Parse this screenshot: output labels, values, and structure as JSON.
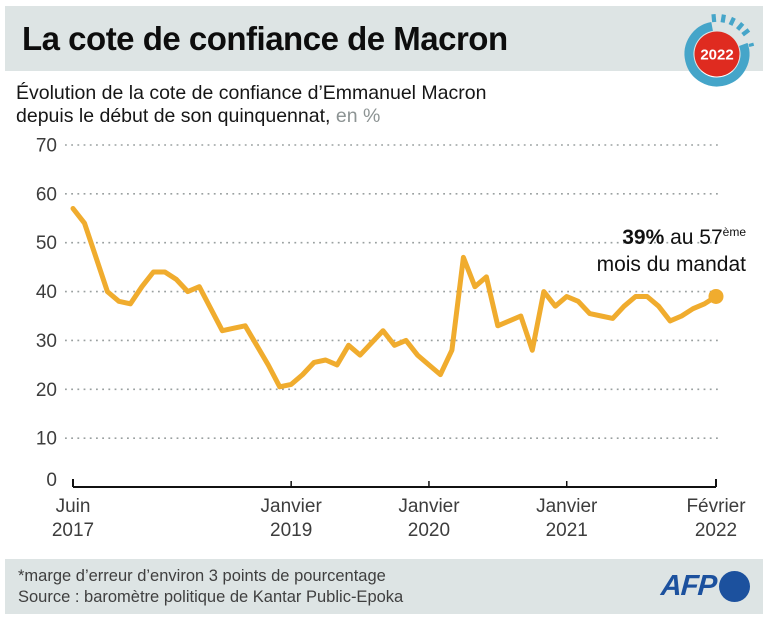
{
  "header": {
    "title": "La cote de confiance de Macron",
    "badge_year": "2022"
  },
  "subtitle": {
    "line1": "Évolution de la cote de confiance d’Emmanuel Macron",
    "line2": "depuis le début de son quinquennat,",
    "line2_unit": " en %"
  },
  "annotation": {
    "bold": "39%",
    "regular": " au 57",
    "superscript": "ème",
    "line2": "mois du mandat"
  },
  "footer": {
    "note": "*marge d’erreur d’environ 3 points de pourcentage",
    "source": "Source : baromètre politique de Kantar Public-Epoka",
    "logo_text": "AFP"
  },
  "colors": {
    "line": "#F0AC2E",
    "grid": "#9aa0a0",
    "axis": "#111111",
    "axis_text": "#3d3d3d",
    "band": "#dde4e4",
    "badge_red": "#DF2B20",
    "badge_blue": "#45A5C9",
    "afp_blue": "#1c519e"
  },
  "chart_data": {
    "type": "line",
    "title": "Cote de confiance d'Emmanuel Macron depuis le début de son quinquennat (%)",
    "ylabel": "en %",
    "ylim": [
      0,
      70
    ],
    "y_ticks": [
      0,
      10,
      20,
      30,
      40,
      50,
      60,
      70
    ],
    "grid": "dotted horizontal",
    "x_start": "Juin 2017",
    "x_end": "Février 2022",
    "x_interval": "mensuel (indice 0 = juin 2017)",
    "x_ticks": [
      {
        "month": 0,
        "line1": "Juin",
        "line2": "2017"
      },
      {
        "month": 19,
        "line1": "Janvier",
        "line2": "2019"
      },
      {
        "month": 31,
        "line1": "Janvier",
        "line2": "2020"
      },
      {
        "month": 43,
        "line1": "Janvier",
        "line2": "2021"
      },
      {
        "month": 56,
        "line1": "Février",
        "line2": "2022"
      }
    ],
    "values": [
      57,
      54,
      47,
      40,
      38,
      37.5,
      41,
      44,
      44,
      42.5,
      40,
      41,
      36.5,
      32,
      32.5,
      33,
      29,
      25,
      20.5,
      21,
      23,
      25.5,
      26,
      25,
      29,
      27,
      29.5,
      32,
      29,
      30,
      27,
      25,
      23,
      28,
      47,
      41,
      43,
      33,
      34,
      35,
      28,
      40,
      37,
      39,
      38,
      35.5,
      35,
      34.5,
      37,
      39,
      39,
      37,
      34,
      35,
      36.5,
      37.5,
      39
    ],
    "end_point": {
      "value": 39,
      "label": "39% au 57ème mois du mandat"
    }
  }
}
